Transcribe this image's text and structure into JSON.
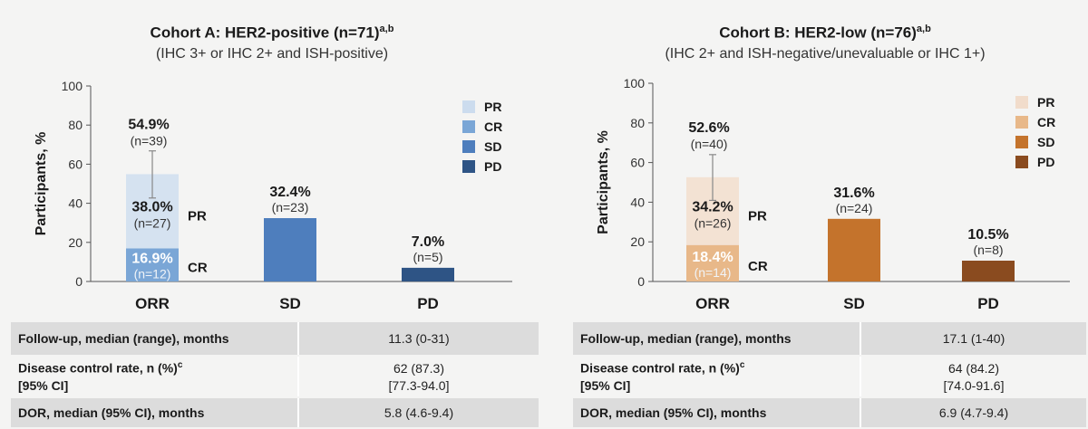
{
  "chart_data": [
    {
      "type": "bar",
      "title": "Cohort A: HER2-positive (n=71)",
      "title_sup": "a,b",
      "subtitle": "(IHC 3+ or IHC 2+ and ISH-positive)",
      "ylabel": "Participants, %",
      "ylim": [
        0,
        100
      ],
      "yticks": [
        0,
        20,
        40,
        60,
        80,
        100
      ],
      "categories": [
        "ORR",
        "SD",
        "PD"
      ],
      "stacked": {
        "category": "ORR",
        "segments": [
          {
            "name": "CR",
            "value": 16.9,
            "pct": "16.9%",
            "n": "(n=12)",
            "color": "#7aa6d6",
            "side_label": "CR"
          },
          {
            "name": "PR",
            "value": 38.0,
            "pct": "38.0%",
            "n": "(n=27)",
            "color": "#d5e2f0",
            "side_label": "PR"
          }
        ],
        "total": {
          "value": 54.9,
          "pct": "54.9%",
          "n": "(n=39)",
          "ci": [
            42.7,
            66.8
          ]
        }
      },
      "bars": [
        {
          "category": "SD",
          "value": 32.4,
          "pct": "32.4%",
          "n": "(n=23)",
          "color": "#4e7ebd"
        },
        {
          "category": "PD",
          "value": 7.0,
          "pct": "7.0%",
          "n": "(n=5)",
          "color": "#2e5485"
        }
      ],
      "legend": [
        {
          "name": "PR",
          "color": "#ccdcee"
        },
        {
          "name": "CR",
          "color": "#7aa6d6"
        },
        {
          "name": "SD",
          "color": "#4e7ebd"
        },
        {
          "name": "PD",
          "color": "#2e5485"
        }
      ],
      "legend_position": "top-right"
    },
    {
      "type": "bar",
      "title": "Cohort B: HER2-low (n=76)",
      "title_sup": "a,b",
      "subtitle": "(IHC 2+ and ISH-negative/unevaluable or IHC 1+)",
      "ylabel": "Participants, %",
      "ylim": [
        0,
        100
      ],
      "yticks": [
        0,
        20,
        40,
        60,
        80,
        100
      ],
      "categories": [
        "ORR",
        "SD",
        "PD"
      ],
      "stacked": {
        "category": "ORR",
        "segments": [
          {
            "name": "CR",
            "value": 18.4,
            "pct": "18.4%",
            "n": "(n=14)",
            "color": "#e8b889",
            "side_label": "CR"
          },
          {
            "name": "PR",
            "value": 34.2,
            "pct": "34.2%",
            "n": "(n=26)",
            "color": "#f3e2d3",
            "side_label": "PR"
          }
        ],
        "total": {
          "value": 52.6,
          "pct": "52.6%",
          "n": "(n=40)",
          "ci": [
            40.9,
            64.0
          ]
        }
      },
      "bars": [
        {
          "category": "SD",
          "value": 31.6,
          "pct": "31.6%",
          "n": "(n=24)",
          "color": "#c4732c"
        },
        {
          "category": "PD",
          "value": 10.5,
          "pct": "10.5%",
          "n": "(n=8)",
          "color": "#8a4b1f"
        }
      ],
      "legend": [
        {
          "name": "PR",
          "color": "#f1dccb"
        },
        {
          "name": "CR",
          "color": "#e8b889"
        },
        {
          "name": "SD",
          "color": "#c4732c"
        },
        {
          "name": "PD",
          "color": "#8a4b1f"
        }
      ],
      "legend_position": "top-right"
    }
  ],
  "tables": {
    "a": {
      "rows": [
        {
          "label": "Follow-up, median (range), months",
          "value": "11.3 (0-31)"
        },
        {
          "label": "Disease control rate, n (%)",
          "label_sup": "c",
          "label2": "[95% CI]",
          "value": "62 (87.3)",
          "value2": "[77.3-94.0]"
        },
        {
          "label": "DOR, median (95% CI), months",
          "value": "5.8 (4.6-9.4)"
        }
      ]
    },
    "b": {
      "rows": [
        {
          "label": "Follow-up, median (range), months",
          "value": "17.1 (1-40)"
        },
        {
          "label": "Disease control rate, n (%)",
          "label_sup": "c",
          "label2": "[95% CI]",
          "value": "64 (84.2)",
          "value2": "[74.0-91.6]"
        },
        {
          "label": "DOR, median (95% CI), months",
          "value": "6.9 (4.7-9.4)"
        }
      ]
    }
  }
}
